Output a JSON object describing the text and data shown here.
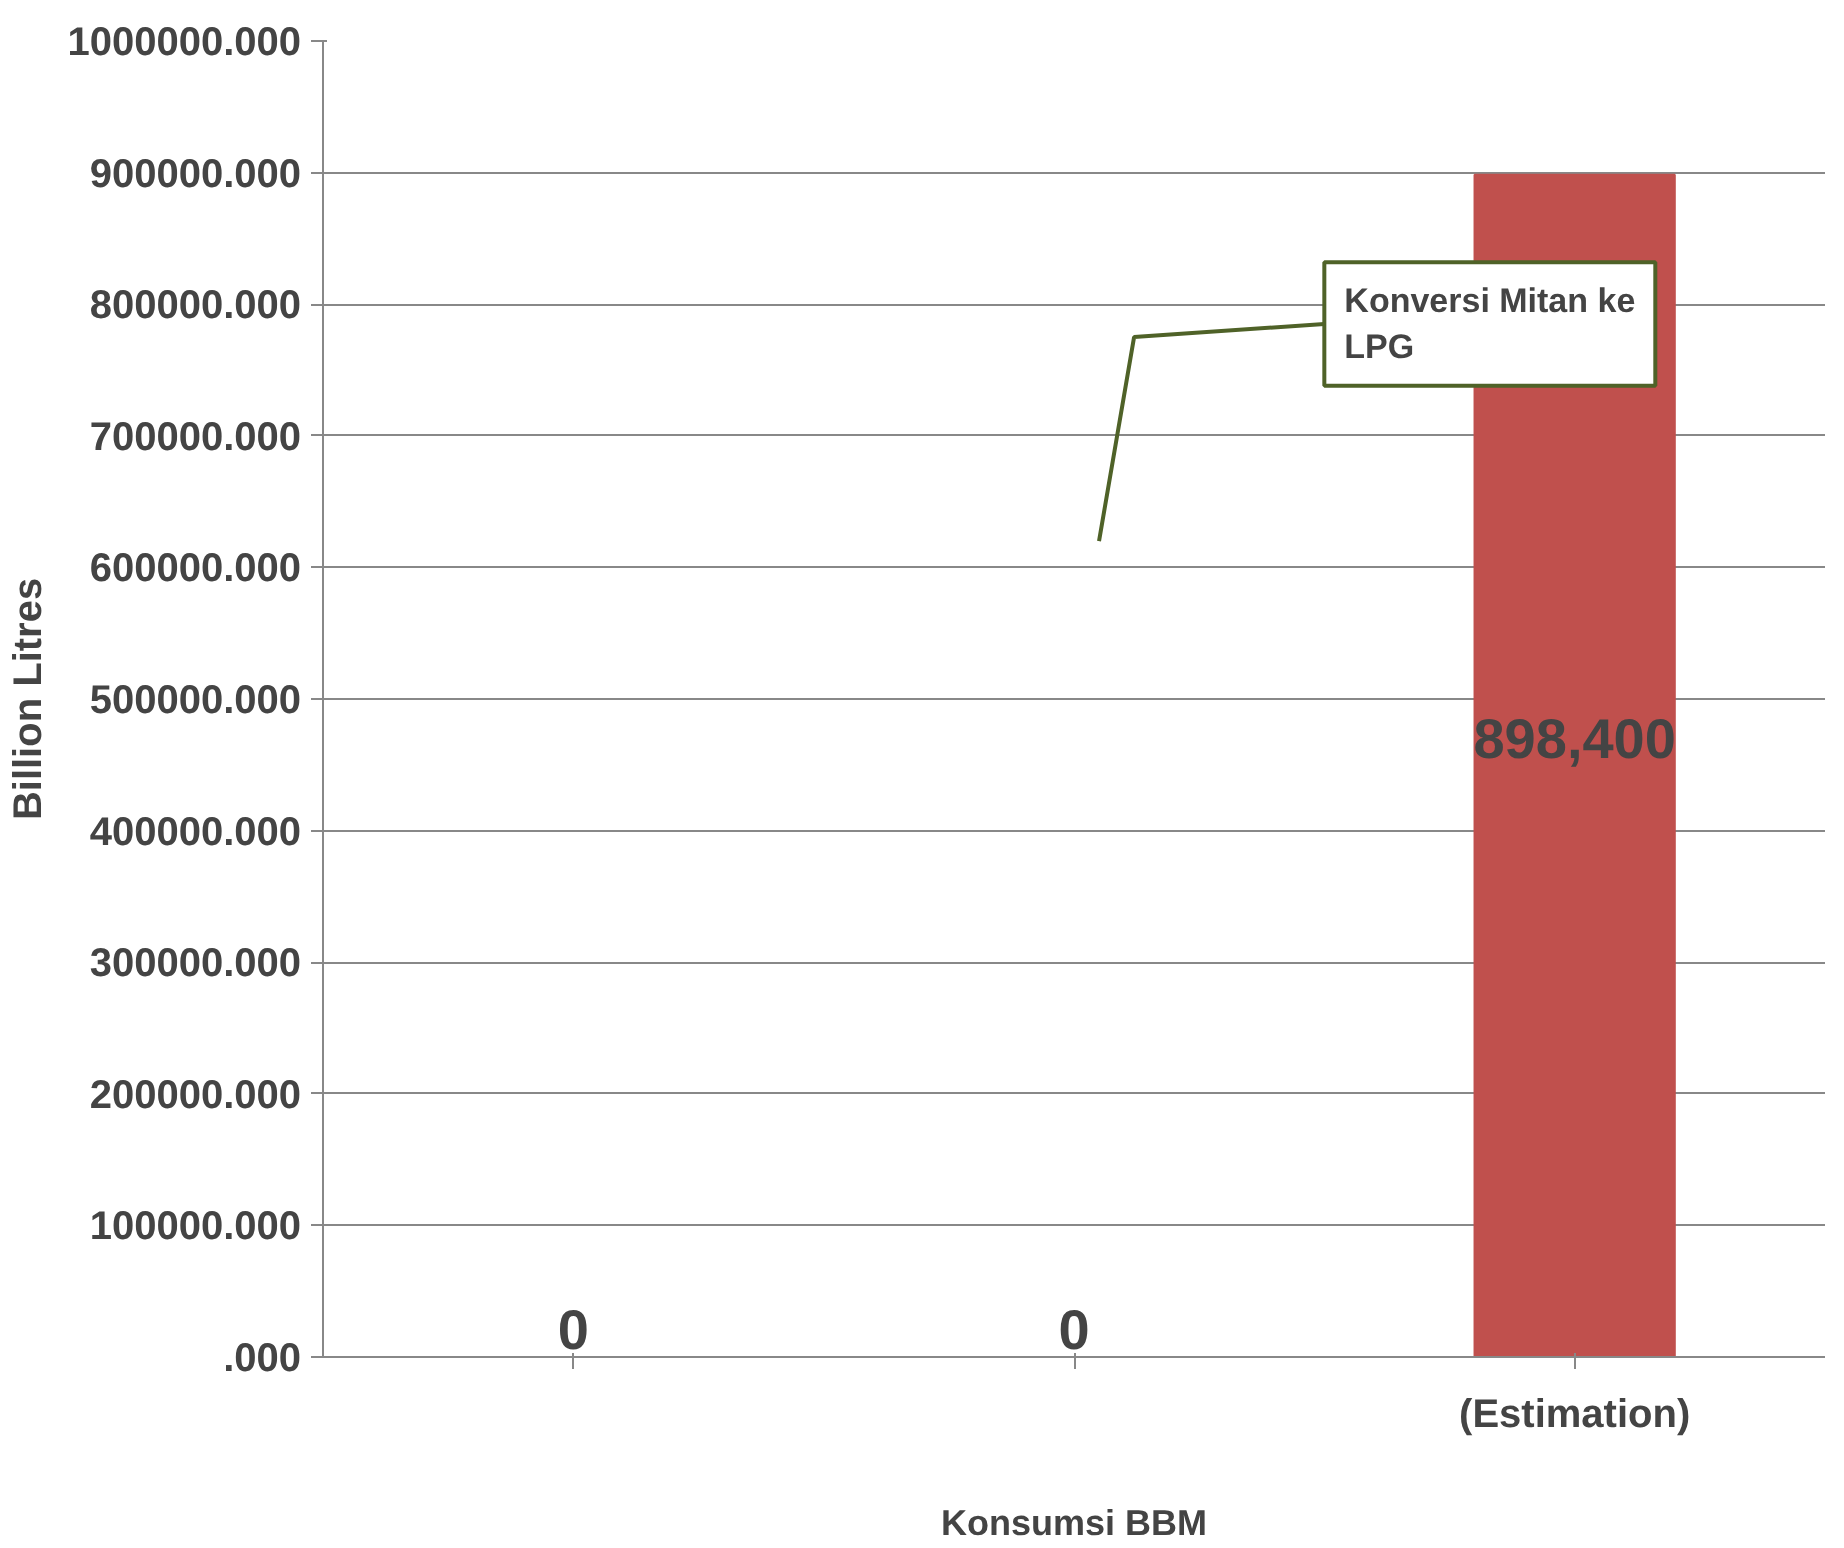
{
  "chart_data": {
    "type": "bar",
    "xlabel": "Konsumsi BBM",
    "ylabel": "Billion Litres",
    "categories": [
      null,
      null,
      "(Estimation)"
    ],
    "values": [
      0,
      0,
      898400
    ],
    "value_labels": [
      "0",
      "0",
      "898,400"
    ],
    "color": "#c0504d",
    "ylim": [
      0,
      1000000
    ],
    "yticks": [
      {
        "value": 0,
        "label": ".000"
      },
      {
        "value": 100000,
        "label": "100000.000"
      },
      {
        "value": 200000,
        "label": "200000.000"
      },
      {
        "value": 300000,
        "label": "300000.000"
      },
      {
        "value": 400000,
        "label": "400000.000"
      },
      {
        "value": 500000,
        "label": "500000.000"
      },
      {
        "value": 600000,
        "label": "600000.000"
      },
      {
        "value": 700000,
        "label": "700000.000"
      },
      {
        "value": 800000,
        "label": "800000.000"
      },
      {
        "value": 900000,
        "label": "900000.000"
      },
      {
        "value": 1000000,
        "label": "1000000.000"
      }
    ],
    "grid": "y",
    "annotations": [
      "Konversi Mitan ke LPG"
    ]
  }
}
